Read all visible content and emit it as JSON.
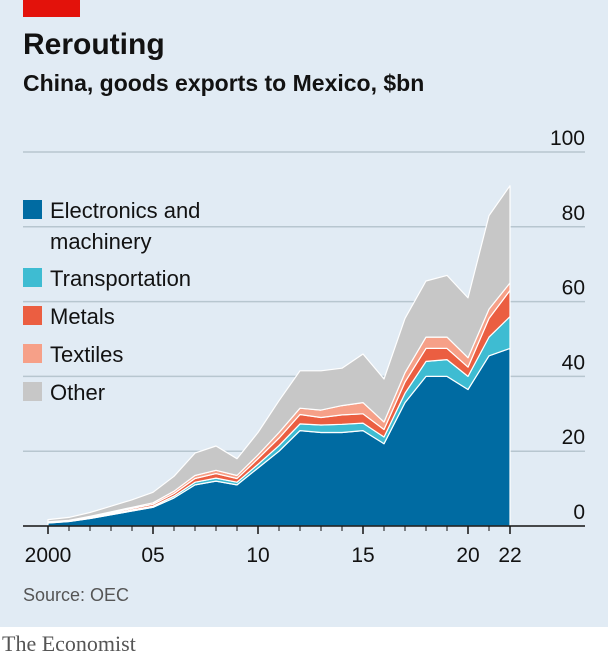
{
  "header": {
    "title": "Rerouting",
    "subtitle": "China, goods exports to Mexico, $bn"
  },
  "footer": {
    "source": "Source: OEC",
    "brand": "The Economist"
  },
  "chart_data": {
    "type": "area",
    "stacked": true,
    "title": "Rerouting",
    "subtitle": "China, goods exports to Mexico, $bn",
    "x": [
      2000,
      2001,
      2002,
      2003,
      2004,
      2005,
      2006,
      2007,
      2008,
      2009,
      2010,
      2011,
      2012,
      2013,
      2014,
      2015,
      2016,
      2017,
      2018,
      2019,
      2020,
      2021,
      2022
    ],
    "x_tick_values": [
      2000,
      2005,
      2010,
      2015,
      2020,
      2022
    ],
    "x_tick_labels": [
      "2000",
      "05",
      "10",
      "15",
      "20",
      "22"
    ],
    "ylim": [
      0,
      100
    ],
    "y_ticks": [
      0,
      20,
      40,
      60,
      80,
      100
    ],
    "y_axis_side": "right",
    "grid": true,
    "legend_position": "left, inside plot",
    "series": [
      {
        "name": "Electronics and machinery",
        "name_lines": [
          "Electronics and",
          "machinery"
        ],
        "color": "#006ba2",
        "values": [
          0.8,
          1.2,
          2.0,
          3.0,
          4.0,
          5.0,
          7.5,
          11.0,
          12.0,
          11.0,
          15.5,
          20.0,
          25.5,
          25.0,
          25.0,
          25.5,
          22.0,
          33.0,
          40.0,
          40.0,
          36.5,
          45.5,
          47.5
        ]
      },
      {
        "name": "Transportation",
        "name_lines": [
          "Transportation"
        ],
        "color": "#3ebcd2",
        "values": [
          0.1,
          0.1,
          0.2,
          0.2,
          0.3,
          0.3,
          0.5,
          0.7,
          0.8,
          0.7,
          1.0,
          1.5,
          1.8,
          2.0,
          2.2,
          2.0,
          1.8,
          2.5,
          4.0,
          4.5,
          3.5,
          5.0,
          8.5
        ]
      },
      {
        "name": "Metals",
        "name_lines": [
          "Metals"
        ],
        "color": "#eb5e41",
        "values": [
          0.1,
          0.1,
          0.2,
          0.3,
          0.4,
          0.5,
          0.7,
          1.0,
          1.2,
          1.0,
          1.5,
          2.0,
          2.5,
          2.0,
          2.5,
          2.5,
          2.0,
          3.0,
          3.5,
          3.0,
          2.5,
          5.0,
          7.0
        ]
      },
      {
        "name": "Textiles",
        "name_lines": [
          "Textiles"
        ],
        "color": "#f6a088",
        "values": [
          0.1,
          0.1,
          0.2,
          0.3,
          0.3,
          0.4,
          0.6,
          0.8,
          0.9,
          0.8,
          1.0,
          1.5,
          1.7,
          2.0,
          2.5,
          3.0,
          2.0,
          2.5,
          3.0,
          3.0,
          2.5,
          2.5,
          2.0
        ]
      },
      {
        "name": "Other",
        "name_lines": [
          "Other"
        ],
        "color": "#c7c7c7",
        "values": [
          0.6,
          0.8,
          1.0,
          1.5,
          2.0,
          2.8,
          4.0,
          6.0,
          6.5,
          4.5,
          6.0,
          8.5,
          10.0,
          10.5,
          10.0,
          13.0,
          11.5,
          14.5,
          15.0,
          16.5,
          16.0,
          25.0,
          26.0
        ]
      }
    ]
  }
}
